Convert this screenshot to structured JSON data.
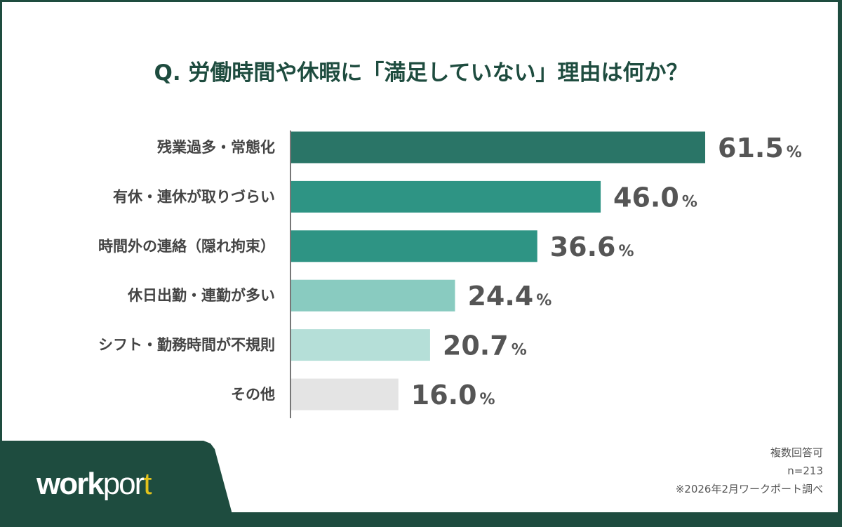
{
  "chart_data": {
    "type": "bar",
    "orientation": "horizontal",
    "title": "Q. 労働時間や休暇に「満足していない」理由は何か？",
    "categories": [
      "残業過多・常態化",
      "有休・連休が取りづらい",
      "時間外の連絡（隠れ拘束）",
      "休日出勤・連勤が多い",
      "シフト・勤務時間が不規則",
      "その他"
    ],
    "values": [
      61.5,
      46.0,
      36.6,
      24.4,
      20.7,
      16.0
    ],
    "value_labels": [
      "61.5",
      "46.0",
      "36.6",
      "24.4",
      "20.7",
      "16.0"
    ],
    "unit": "%",
    "colors": [
      "#2a7567",
      "#2e9484",
      "#2e9484",
      "#89cbc0",
      "#b5dfd8",
      "#e4e4e4"
    ],
    "grid": false
  },
  "footer": {
    "brand": {
      "bold": "work",
      "light": "por",
      "end": "t"
    },
    "notes": [
      "複数回答可",
      "n=213",
      "※2026年2月ワークポート調べ"
    ]
  },
  "colors": {
    "frame": "#1e4c3f",
    "accent": "#e2c21c"
  }
}
